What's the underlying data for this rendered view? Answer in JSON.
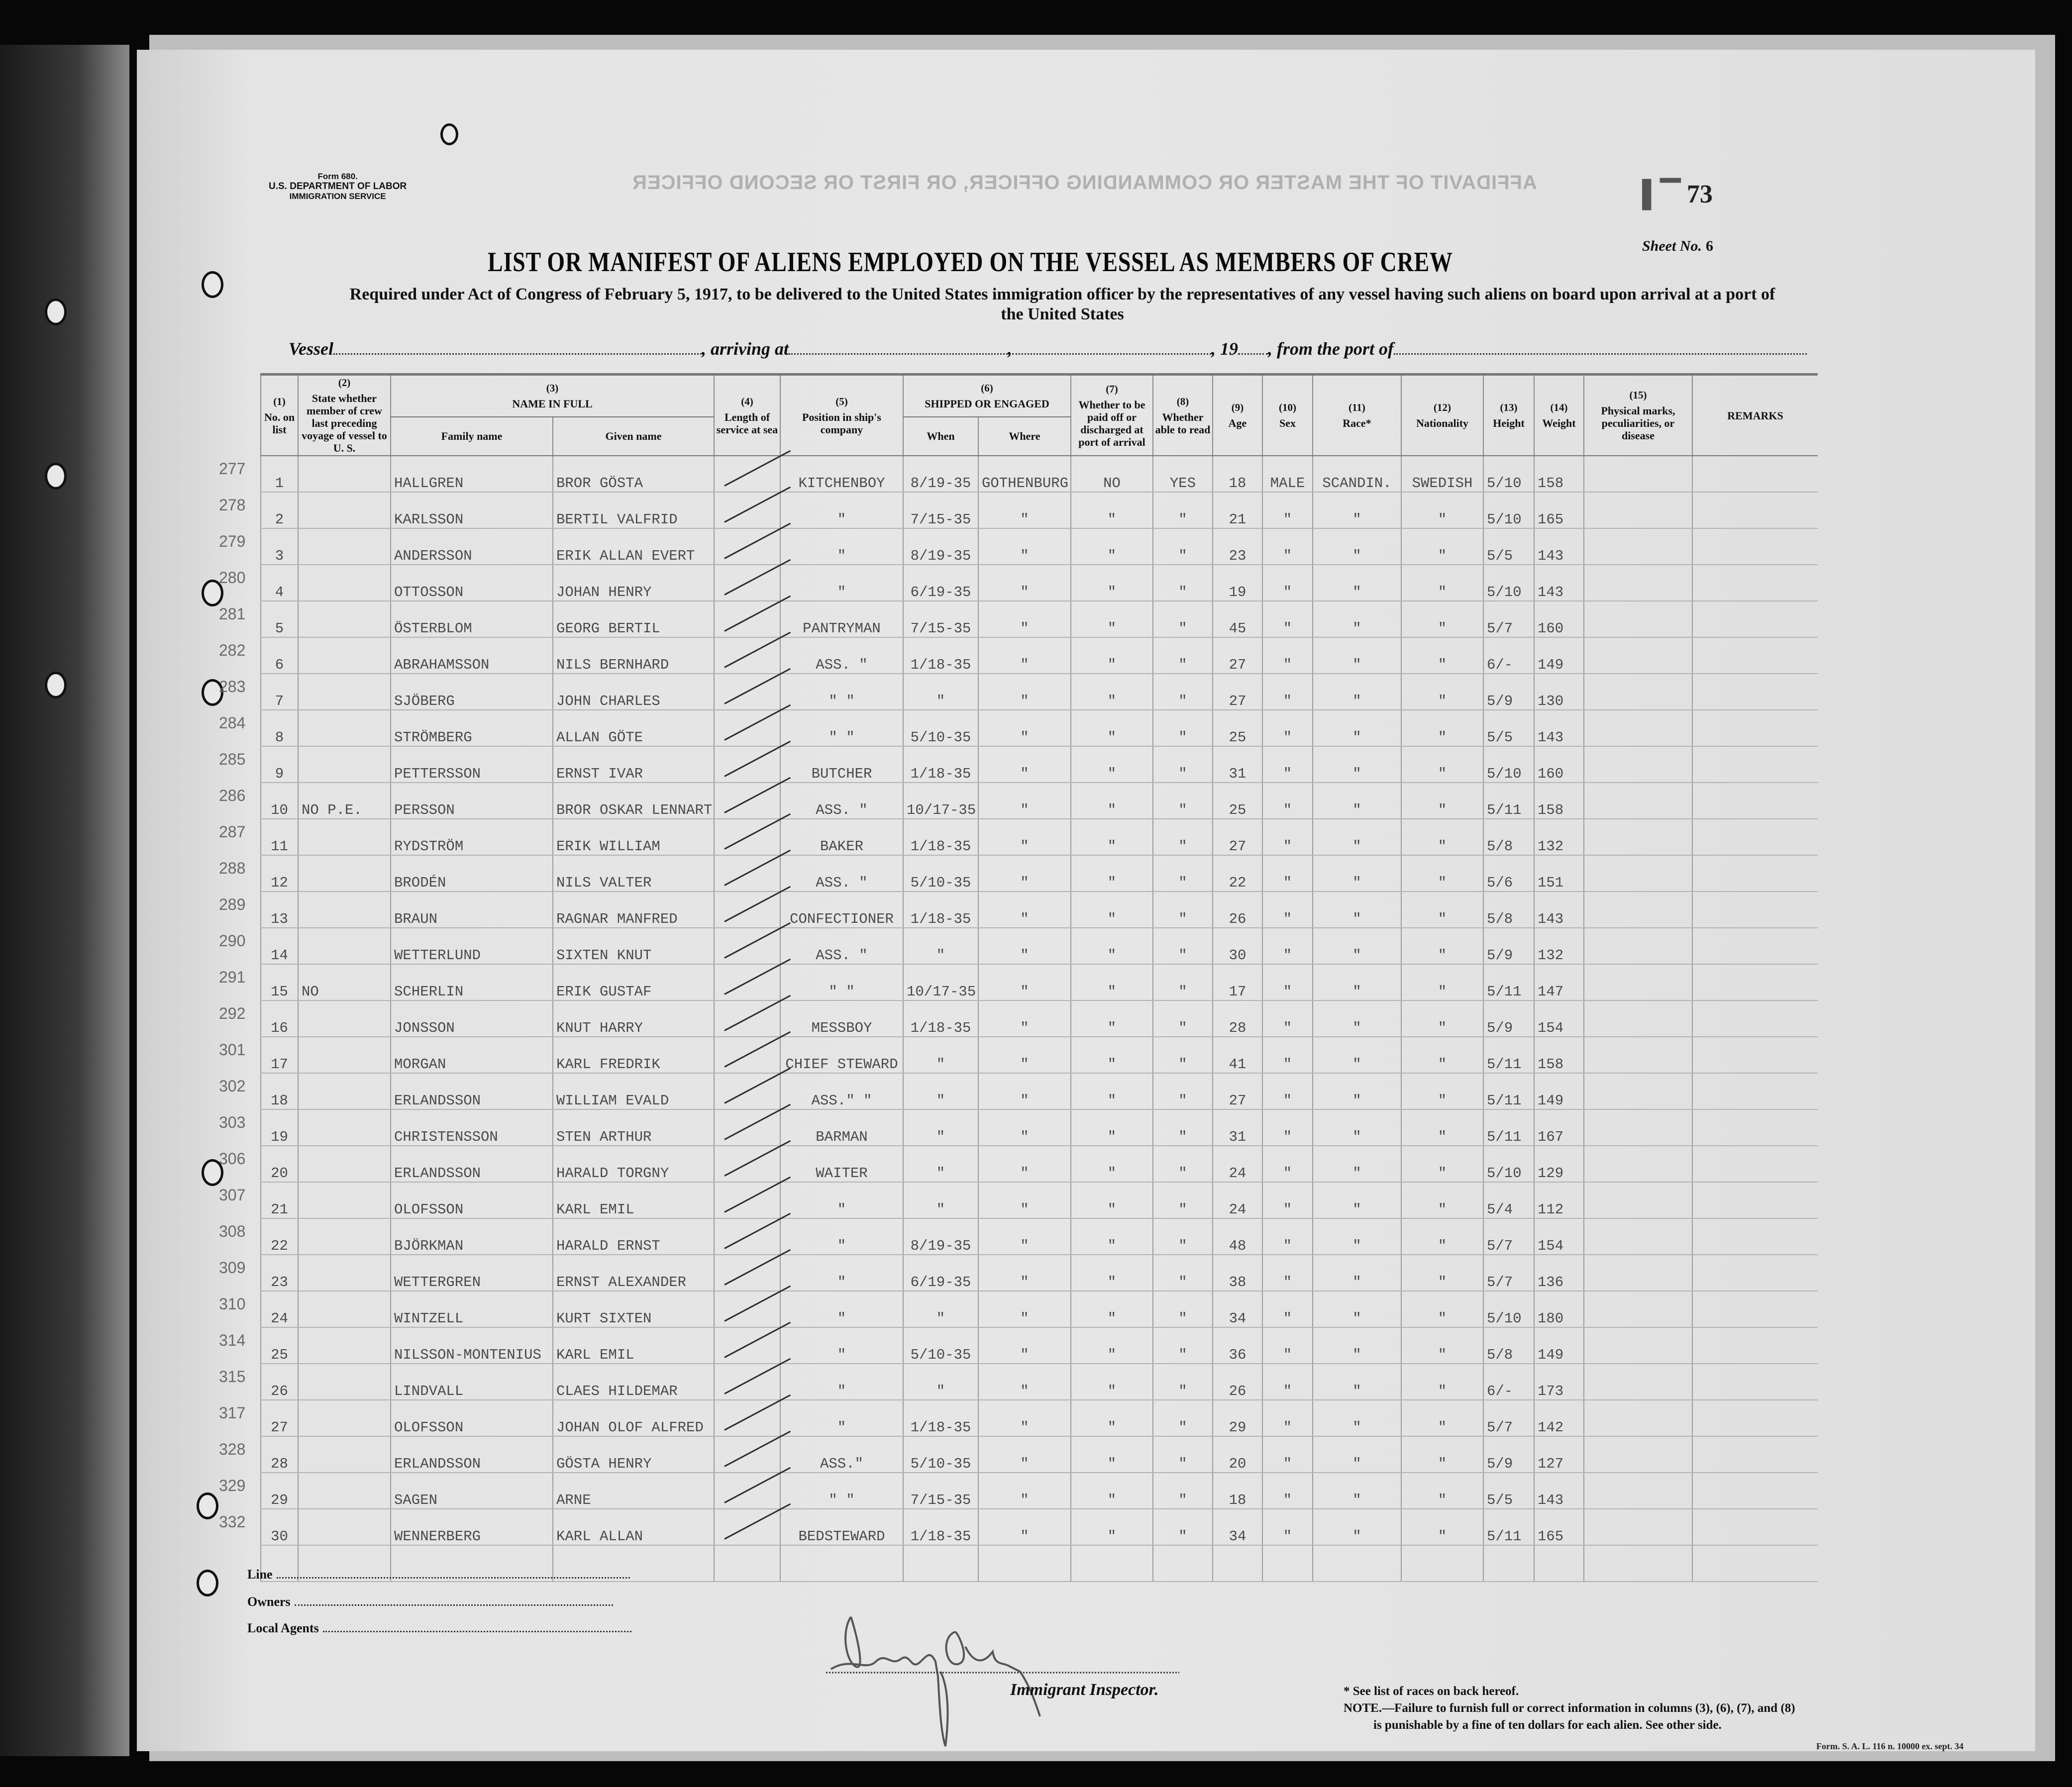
{
  "form": {
    "form_number": "Form 680.",
    "department": "U.S. DEPARTMENT OF LABOR",
    "service": "IMMIGRATION SERVICE",
    "bleed_through": "AFFIDAVIT OF THE MASTER OR COMMANDING OFFICER, OR FIRST OR SECOND OFFICER",
    "stamp_number": "73",
    "sheet_label": "Sheet No.",
    "sheet_value": "6"
  },
  "title": "LIST OR MANIFEST OF ALIENS EMPLOYED ON THE VESSEL AS MEMBERS OF CREW",
  "subtitle": "Required under Act of Congress of February 5, 1917, to be delivered to the United States immigration officer by the representatives of any vessel having such aliens on board upon arrival at a port of the United States",
  "vessel_line": {
    "vessel": "Vessel",
    "arriving": ", arriving at",
    "comma": ",",
    "year": ", 19",
    "from_port": ", from the port of"
  },
  "columns": {
    "c1": {
      "num": "(1)",
      "label": "No. on list"
    },
    "c2": {
      "num": "(2)",
      "label": "State whether member of crew last preceding voyage of vessel to U. S."
    },
    "c3": {
      "num": "(3)",
      "label": "NAME IN FULL",
      "family": "Family name",
      "given": "Given name"
    },
    "c4": {
      "num": "(4)",
      "label": "Length of service at sea"
    },
    "c5": {
      "num": "(5)",
      "label": "Position in ship's company"
    },
    "c6": {
      "num": "(6)",
      "label": "SHIPPED OR ENGAGED",
      "when": "When",
      "where": "Where"
    },
    "c7": {
      "num": "(7)",
      "label": "Whether to be paid off or discharged at port of arrival"
    },
    "c8": {
      "num": "(8)",
      "label": "Whether able to read"
    },
    "c9": {
      "num": "(9)",
      "label": "Age"
    },
    "c10": {
      "num": "(10)",
      "label": "Sex"
    },
    "c11": {
      "num": "(11)",
      "label": "Race*"
    },
    "c12": {
      "num": "(12)",
      "label": "Nationality"
    },
    "c13": {
      "num": "(13)",
      "label": "Height"
    },
    "c14": {
      "num": "(14)",
      "label": "Weight"
    },
    "c15": {
      "num": "(15)",
      "label": "Physical marks, peculiarities, or disease"
    },
    "remarks": {
      "label": "REMARKS"
    }
  },
  "rows": [
    {
      "list": "277",
      "no": "1",
      "state": "",
      "family": "HALLGREN",
      "given": "BROR GÖSTA",
      "position": "KITCHENBOY",
      "when": "8/19-35",
      "where": "GOTHENBURG",
      "paid": "NO",
      "read": "YES",
      "age": "18",
      "sex": "MALE",
      "race": "SCANDIN.",
      "nationality": "SWEDISH",
      "height": "5/10",
      "weight": "158"
    },
    {
      "list": "278",
      "no": "2",
      "state": "",
      "family": "KARLSSON",
      "given": "BERTIL VALFRID",
      "position": "\"",
      "when": "7/15-35",
      "where": "\"",
      "paid": "\"",
      "read": "\"",
      "age": "21",
      "sex": "\"",
      "race": "\"",
      "nationality": "\"",
      "height": "5/10",
      "weight": "165"
    },
    {
      "list": "279",
      "no": "3",
      "state": "",
      "family": "ANDERSSON",
      "given": "ERIK ALLAN EVERT",
      "position": "\"",
      "when": "8/19-35",
      "where": "\"",
      "paid": "\"",
      "read": "\"",
      "age": "23",
      "sex": "\"",
      "race": "\"",
      "nationality": "\"",
      "height": "5/5",
      "weight": "143"
    },
    {
      "list": "280",
      "no": "4",
      "state": "",
      "family": "OTTOSSON",
      "given": "JOHAN HENRY",
      "position": "\"",
      "when": "6/19-35",
      "where": "\"",
      "paid": "\"",
      "read": "\"",
      "age": "19",
      "sex": "\"",
      "race": "\"",
      "nationality": "\"",
      "height": "5/10",
      "weight": "143"
    },
    {
      "list": "281",
      "no": "5",
      "state": "",
      "family": "ÖSTERBLOM",
      "given": "GEORG BERTIL",
      "position": "PANTRYMAN",
      "when": "7/15-35",
      "where": "\"",
      "paid": "\"",
      "read": "\"",
      "age": "45",
      "sex": "\"",
      "race": "\"",
      "nationality": "\"",
      "height": "5/7",
      "weight": "160"
    },
    {
      "list": "282",
      "no": "6",
      "state": "",
      "family": "ABRAHAMSSON",
      "given": "NILS BERNHARD",
      "position": "ASS. \"",
      "when": "1/18-35",
      "where": "\"",
      "paid": "\"",
      "read": "\"",
      "age": "27",
      "sex": "\"",
      "race": "\"",
      "nationality": "\"",
      "height": "6/-",
      "weight": "149"
    },
    {
      "list": "283",
      "no": "7",
      "state": "",
      "family": "SJÖBERG",
      "given": "JOHN CHARLES",
      "position": "\"  \"",
      "when": "\"",
      "where": "\"",
      "paid": "\"",
      "read": "\"",
      "age": "27",
      "sex": "\"",
      "race": "\"",
      "nationality": "\"",
      "height": "5/9",
      "weight": "130"
    },
    {
      "list": "284",
      "no": "8",
      "state": "",
      "family": "STRÖMBERG",
      "given": "ALLAN GÖTE",
      "position": "\"  \"",
      "when": "5/10-35",
      "where": "\"",
      "paid": "\"",
      "read": "\"",
      "age": "25",
      "sex": "\"",
      "race": "\"",
      "nationality": "\"",
      "height": "5/5",
      "weight": "143"
    },
    {
      "list": "285",
      "no": "9",
      "state": "",
      "family": "PETTERSSON",
      "given": "ERNST IVAR",
      "position": "BUTCHER",
      "when": "1/18-35",
      "where": "\"",
      "paid": "\"",
      "read": "\"",
      "age": "31",
      "sex": "\"",
      "race": "\"",
      "nationality": "\"",
      "height": "5/10",
      "weight": "160"
    },
    {
      "list": "286",
      "no": "10",
      "state": "NO P.E.",
      "family": "PERSSON",
      "given": "BROR OSKAR LENNART",
      "position": "ASS. \"",
      "when": "10/17-35",
      "where": "\"",
      "paid": "\"",
      "read": "\"",
      "age": "25",
      "sex": "\"",
      "race": "\"",
      "nationality": "\"",
      "height": "5/11",
      "weight": "158"
    },
    {
      "list": "287",
      "no": "11",
      "state": "",
      "family": "RYDSTRÖM",
      "given": "ERIK WILLIAM",
      "position": "BAKER",
      "when": "1/18-35",
      "where": "\"",
      "paid": "\"",
      "read": "\"",
      "age": "27",
      "sex": "\"",
      "race": "\"",
      "nationality": "\"",
      "height": "5/8",
      "weight": "132"
    },
    {
      "list": "288",
      "no": "12",
      "state": "",
      "family": "BRODÉN",
      "given": "NILS VALTER",
      "position": "ASS. \"",
      "when": "5/10-35",
      "where": "\"",
      "paid": "\"",
      "read": "\"",
      "age": "22",
      "sex": "\"",
      "race": "\"",
      "nationality": "\"",
      "height": "5/6",
      "weight": "151"
    },
    {
      "list": "289",
      "no": "13",
      "state": "",
      "family": "BRAUN",
      "given": "RAGNAR MANFRED",
      "position": "CONFECTIONER",
      "when": "1/18-35",
      "where": "\"",
      "paid": "\"",
      "read": "\"",
      "age": "26",
      "sex": "\"",
      "race": "\"",
      "nationality": "\"",
      "height": "5/8",
      "weight": "143"
    },
    {
      "list": "290",
      "no": "14",
      "state": "",
      "family": "WETTERLUND",
      "given": "SIXTEN KNUT",
      "position": "ASS. \"",
      "when": "\"",
      "where": "\"",
      "paid": "\"",
      "read": "\"",
      "age": "30",
      "sex": "\"",
      "race": "\"",
      "nationality": "\"",
      "height": "5/9",
      "weight": "132"
    },
    {
      "list": "291",
      "no": "15",
      "state": "NO",
      "family": "SCHERLIN",
      "given": "ERIK GUSTAF",
      "position": "\"  \"",
      "when": "10/17-35",
      "where": "\"",
      "paid": "\"",
      "read": "\"",
      "age": "17",
      "sex": "\"",
      "race": "\"",
      "nationality": "\"",
      "height": "5/11",
      "weight": "147"
    },
    {
      "list": "292",
      "no": "16",
      "state": "",
      "family": "JONSSON",
      "given": "KNUT HARRY",
      "position": "MESSBOY",
      "when": "1/18-35",
      "where": "\"",
      "paid": "\"",
      "read": "\"",
      "age": "28",
      "sex": "\"",
      "race": "\"",
      "nationality": "\"",
      "height": "5/9",
      "weight": "154"
    },
    {
      "list": "301",
      "no": "17",
      "state": "",
      "family": "MORGAN",
      "given": "KARL FREDRIK",
      "position": "CHIEF STEWARD",
      "when": "\"",
      "where": "\"",
      "paid": "\"",
      "read": "\"",
      "age": "41",
      "sex": "\"",
      "race": "\"",
      "nationality": "\"",
      "height": "5/11",
      "weight": "158"
    },
    {
      "list": "302",
      "no": "18",
      "state": "",
      "family": "ERLANDSSON",
      "given": "WILLIAM EVALD",
      "position": "ASS.\" \"",
      "when": "\"",
      "where": "\"",
      "paid": "\"",
      "read": "\"",
      "age": "27",
      "sex": "\"",
      "race": "\"",
      "nationality": "\"",
      "height": "5/11",
      "weight": "149"
    },
    {
      "list": "303",
      "no": "19",
      "state": "",
      "family": "CHRISTENSSON",
      "given": "STEN ARTHUR",
      "position": "BARMAN",
      "when": "\"",
      "where": "\"",
      "paid": "\"",
      "read": "\"",
      "age": "31",
      "sex": "\"",
      "race": "\"",
      "nationality": "\"",
      "height": "5/11",
      "weight": "167"
    },
    {
      "list": "306",
      "no": "20",
      "state": "",
      "family": "ERLANDSSON",
      "given": "HARALD TORGNY",
      "position": "WAITER",
      "when": "\"",
      "where": "\"",
      "paid": "\"",
      "read": "\"",
      "age": "24",
      "sex": "\"",
      "race": "\"",
      "nationality": "\"",
      "height": "5/10",
      "weight": "129"
    },
    {
      "list": "307",
      "no": "21",
      "state": "",
      "family": "OLOFSSON",
      "given": "KARL EMIL",
      "position": "\"",
      "when": "\"",
      "where": "\"",
      "paid": "\"",
      "read": "\"",
      "age": "24",
      "sex": "\"",
      "race": "\"",
      "nationality": "\"",
      "height": "5/4",
      "weight": "112"
    },
    {
      "list": "308",
      "no": "22",
      "state": "",
      "family": "BJÖRKMAN",
      "given": "HARALD ERNST",
      "position": "\"",
      "when": "8/19-35",
      "where": "\"",
      "paid": "\"",
      "read": "\"",
      "age": "48",
      "sex": "\"",
      "race": "\"",
      "nationality": "\"",
      "height": "5/7",
      "weight": "154"
    },
    {
      "list": "309",
      "no": "23",
      "state": "",
      "family": "WETTERGREN",
      "given": "ERNST ALEXANDER",
      "position": "\"",
      "when": "6/19-35",
      "where": "\"",
      "paid": "\"",
      "read": "\"",
      "age": "38",
      "sex": "\"",
      "race": "\"",
      "nationality": "\"",
      "height": "5/7",
      "weight": "136"
    },
    {
      "list": "310",
      "no": "24",
      "state": "",
      "family": "WINTZELL",
      "given": "KURT SIXTEN",
      "position": "\"",
      "when": "\"",
      "where": "\"",
      "paid": "\"",
      "read": "\"",
      "age": "34",
      "sex": "\"",
      "race": "\"",
      "nationality": "\"",
      "height": "5/10",
      "weight": "180"
    },
    {
      "list": "314",
      "no": "25",
      "state": "",
      "family": "NILSSON-MONTENIUS",
      "given": "KARL EMIL",
      "position": "\"",
      "when": "5/10-35",
      "where": "\"",
      "paid": "\"",
      "read": "\"",
      "age": "36",
      "sex": "\"",
      "race": "\"",
      "nationality": "\"",
      "height": "5/8",
      "weight": "149"
    },
    {
      "list": "315",
      "no": "26",
      "state": "",
      "family": "LINDVALL",
      "given": "CLAES HILDEMAR",
      "position": "\"",
      "when": "\"",
      "where": "\"",
      "paid": "\"",
      "read": "\"",
      "age": "26",
      "sex": "\"",
      "race": "\"",
      "nationality": "\"",
      "height": "6/-",
      "weight": "173"
    },
    {
      "list": "317",
      "no": "27",
      "state": "",
      "family": "OLOFSSON",
      "given": "JOHAN OLOF ALFRED",
      "position": "\"",
      "when": "1/18-35",
      "where": "\"",
      "paid": "\"",
      "read": "\"",
      "age": "29",
      "sex": "\"",
      "race": "\"",
      "nationality": "\"",
      "height": "5/7",
      "weight": "142"
    },
    {
      "list": "328",
      "no": "28",
      "state": "",
      "family": "ERLANDSSON",
      "given": "GÖSTA HENRY",
      "position": "ASS.\"",
      "when": "5/10-35",
      "where": "\"",
      "paid": "\"",
      "read": "\"",
      "age": "20",
      "sex": "\"",
      "race": "\"",
      "nationality": "\"",
      "height": "5/9",
      "weight": "127"
    },
    {
      "list": "329",
      "no": "29",
      "state": "",
      "family": "SAGEN",
      "given": "ARNE",
      "position": "\"  \"",
      "when": "7/15-35",
      "where": "\"",
      "paid": "\"",
      "read": "\"",
      "age": "18",
      "sex": "\"",
      "race": "\"",
      "nationality": "\"",
      "height": "5/5",
      "weight": "143"
    },
    {
      "list": "332",
      "no": "30",
      "state": "",
      "family": "WENNERBERG",
      "given": "KARL ALLAN",
      "position": "BEDSTEWARD",
      "when": "1/18-35",
      "where": "\"",
      "paid": "\"",
      "read": "\"",
      "age": "34",
      "sex": "\"",
      "race": "\"",
      "nationality": "\"",
      "height": "5/11",
      "weight": "165"
    }
  ],
  "footer": {
    "line": "Line",
    "owners": "Owners",
    "local_agents": "Local Agents",
    "inspector": "Immigrant Inspector.",
    "note_races": "* See list of races on back hereof.",
    "note_1": "NOTE.—Failure to furnish full or correct information in columns (3), (6), (7), and (8)",
    "note_2": "is punishable by a fine of ten dollars for each alien.  See other side.",
    "form_ref": "Form. S. A. L. 116 n. 10000 ex. sept. 34"
  },
  "colors": {
    "paper": "#e4e4e4",
    "ink": "#111111",
    "typed": "#4a4a4a",
    "border": "#070707"
  }
}
